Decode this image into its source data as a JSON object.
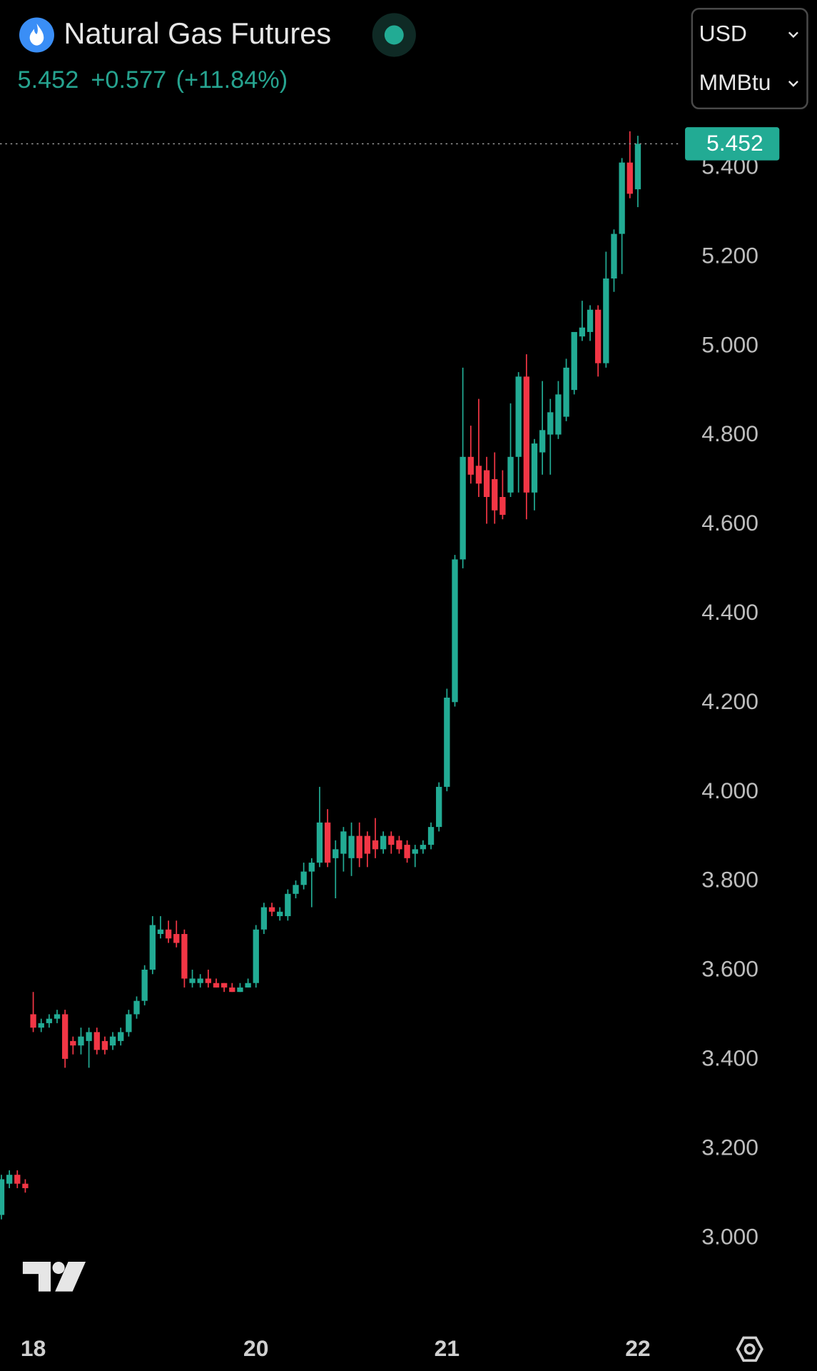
{
  "chart_data": {
    "type": "candlestick",
    "title": "Natural Gas Futures",
    "last_price": 5.452,
    "change": {
      "value": 0.577,
      "label": "+0.577"
    },
    "change_pct": {
      "value": 11.84,
      "label": "(+11.84%)"
    },
    "currency": "USD",
    "unit": "MMBtu",
    "up_color": "#22ab94",
    "down_color": "#f23645",
    "categories": [
      null,
      null,
      null,
      null,
      "18",
      null,
      null,
      null,
      null,
      null,
      null,
      null,
      null,
      null,
      null,
      null,
      null,
      null,
      null,
      null,
      null,
      null,
      null,
      null,
      null,
      null,
      null,
      null,
      null,
      null,
      null,
      null,
      "20",
      null,
      null,
      null,
      null,
      null,
      null,
      null,
      null,
      null,
      null,
      null,
      null,
      null,
      null,
      null,
      null,
      null,
      null,
      null,
      null,
      null,
      null,
      null,
      "21",
      null,
      null,
      null,
      null,
      null,
      null,
      null,
      null,
      null,
      null,
      null,
      null,
      null,
      null,
      null,
      null,
      null,
      null,
      null,
      null,
      null,
      null,
      null,
      "22"
    ],
    "open": [
      3.05,
      3.12,
      3.14,
      3.12,
      3.5,
      3.47,
      3.48,
      3.49,
      3.5,
      3.44,
      3.43,
      3.44,
      3.46,
      3.44,
      3.43,
      3.44,
      3.46,
      3.5,
      3.53,
      3.6,
      3.68,
      3.69,
      3.68,
      3.68,
      3.57,
      3.57,
      3.58,
      3.57,
      3.57,
      3.56,
      3.55,
      3.56,
      3.57,
      3.69,
      3.74,
      3.72,
      3.72,
      3.77,
      3.79,
      3.82,
      3.84,
      3.93,
      3.85,
      3.86,
      3.85,
      3.9,
      3.9,
      3.89,
      3.87,
      3.9,
      3.89,
      3.88,
      3.86,
      3.87,
      3.88,
      3.92,
      4.01,
      4.2,
      4.52,
      4.75,
      4.73,
      4.72,
      4.7,
      4.66,
      4.67,
      4.75,
      4.93,
      4.67,
      4.76,
      4.8,
      4.8,
      4.84,
      4.9,
      5.02,
      5.03,
      5.08,
      4.96,
      5.15,
      5.25,
      5.41,
      5.35
    ],
    "high": [
      3.14,
      3.15,
      3.15,
      3.13,
      3.55,
      3.49,
      3.5,
      3.51,
      3.51,
      3.45,
      3.47,
      3.47,
      3.47,
      3.45,
      3.46,
      3.47,
      3.51,
      3.54,
      3.61,
      3.72,
      3.72,
      3.71,
      3.71,
      3.69,
      3.6,
      3.59,
      3.6,
      3.58,
      3.57,
      3.57,
      3.57,
      3.58,
      3.7,
      3.75,
      3.75,
      3.74,
      3.78,
      3.8,
      3.84,
      3.85,
      4.01,
      3.96,
      3.89,
      3.92,
      3.93,
      3.93,
      3.91,
      3.94,
      3.91,
      3.91,
      3.9,
      3.89,
      3.88,
      3.89,
      3.93,
      4.02,
      4.23,
      4.53,
      4.95,
      4.82,
      4.88,
      4.75,
      4.76,
      4.72,
      4.87,
      4.94,
      4.98,
      4.79,
      4.92,
      4.88,
      4.92,
      4.97,
      5.03,
      5.1,
      5.09,
      5.09,
      5.21,
      5.26,
      5.42,
      5.48,
      5.47
    ],
    "low": [
      3.04,
      3.11,
      3.11,
      3.1,
      3.46,
      3.46,
      3.47,
      3.48,
      3.38,
      3.41,
      3.41,
      3.38,
      3.41,
      3.41,
      3.42,
      3.43,
      3.45,
      3.49,
      3.52,
      3.59,
      3.67,
      3.66,
      3.65,
      3.56,
      3.56,
      3.56,
      3.56,
      3.56,
      3.55,
      3.55,
      3.55,
      3.56,
      3.56,
      3.68,
      3.72,
      3.71,
      3.71,
      3.76,
      3.78,
      3.74,
      3.83,
      3.83,
      3.76,
      3.82,
      3.81,
      3.83,
      3.83,
      3.85,
      3.86,
      3.86,
      3.86,
      3.84,
      3.83,
      3.86,
      3.87,
      3.91,
      4.0,
      4.19,
      4.5,
      4.69,
      4.66,
      4.6,
      4.6,
      4.61,
      4.66,
      4.67,
      4.61,
      4.63,
      4.71,
      4.71,
      4.79,
      4.83,
      4.89,
      5.01,
      5.01,
      4.93,
      4.95,
      5.12,
      5.16,
      5.33,
      5.31
    ],
    "close": [
      3.13,
      3.14,
      3.12,
      3.11,
      3.47,
      3.48,
      3.49,
      3.5,
      3.4,
      3.43,
      3.45,
      3.46,
      3.42,
      3.42,
      3.45,
      3.46,
      3.5,
      3.53,
      3.6,
      3.7,
      3.69,
      3.67,
      3.66,
      3.58,
      3.58,
      3.58,
      3.57,
      3.56,
      3.56,
      3.55,
      3.56,
      3.57,
      3.69,
      3.74,
      3.73,
      3.73,
      3.77,
      3.79,
      3.82,
      3.84,
      3.93,
      3.84,
      3.87,
      3.91,
      3.9,
      3.85,
      3.86,
      3.87,
      3.9,
      3.88,
      3.87,
      3.85,
      3.87,
      3.88,
      3.92,
      4.01,
      4.21,
      4.52,
      4.75,
      4.71,
      4.69,
      4.66,
      4.63,
      4.62,
      4.75,
      4.93,
      4.67,
      4.78,
      4.81,
      4.85,
      4.89,
      4.95,
      5.03,
      5.04,
      5.08,
      4.96,
      5.15,
      5.25,
      5.41,
      5.34,
      5.452
    ],
    "ylim": [
      2.83,
      5.52
    ],
    "yticks": [
      {
        "value": 3.0,
        "label": "3.000"
      },
      {
        "value": 3.2,
        "label": "3.200"
      },
      {
        "value": 3.4,
        "label": "3.400"
      },
      {
        "value": 3.6,
        "label": "3.600"
      },
      {
        "value": 3.8,
        "label": "3.800"
      },
      {
        "value": 4.0,
        "label": "4.000"
      },
      {
        "value": 4.2,
        "label": "4.200"
      },
      {
        "value": 4.4,
        "label": "4.400"
      },
      {
        "value": 4.6,
        "label": "4.600"
      },
      {
        "value": 4.8,
        "label": "4.800"
      },
      {
        "value": 5.0,
        "label": "5.000"
      },
      {
        "value": 5.2,
        "label": "5.200"
      },
      {
        "value": 5.4,
        "label": "5.400"
      }
    ],
    "grid": false
  }
}
